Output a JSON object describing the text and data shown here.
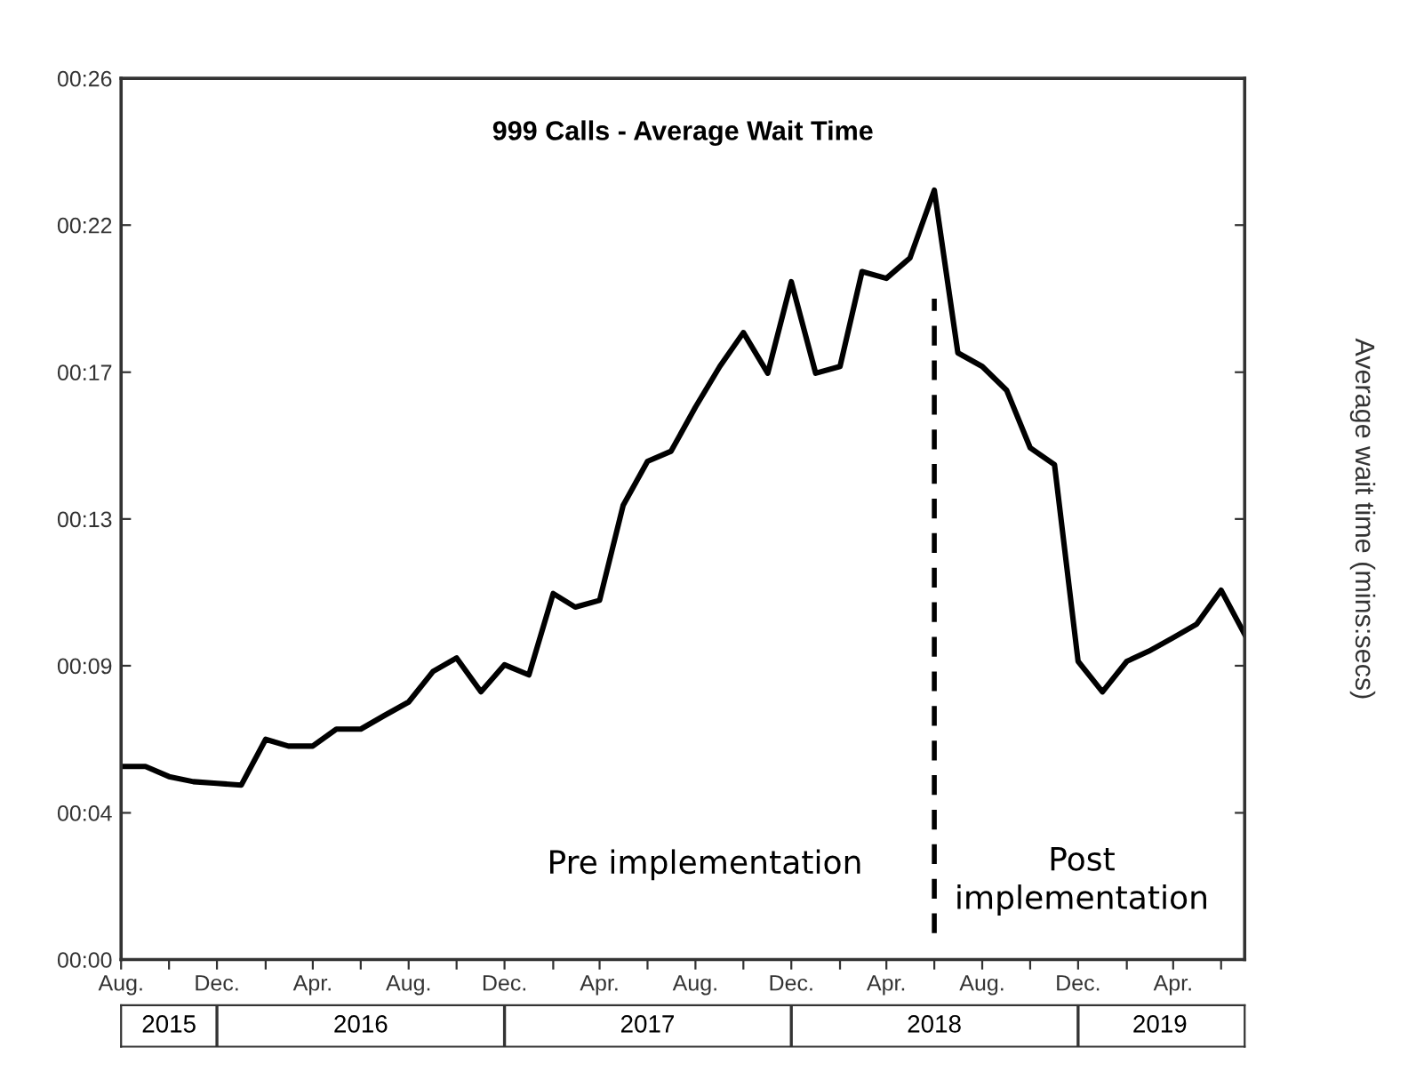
{
  "chart_data": {
    "type": "line",
    "title": "999 Calls - Average Wait Time",
    "y2label": "Average wait time (mins:secs)",
    "x": [
      "2015-08",
      "2015-09",
      "2015-10",
      "2015-11",
      "2015-12",
      "2016-01",
      "2016-02",
      "2016-03",
      "2016-04",
      "2016-05",
      "2016-06",
      "2016-07",
      "2016-08",
      "2016-09",
      "2016-10",
      "2016-11",
      "2016-12",
      "2017-01",
      "2017-02",
      "2017-03",
      "2017-04",
      "2017-05",
      "2017-06",
      "2017-07",
      "2017-08",
      "2017-09",
      "2017-10",
      "2017-11",
      "2017-12",
      "2018-01",
      "2018-02",
      "2018-03",
      "2018-04",
      "2018-05",
      "2018-06",
      "2018-07",
      "2018-08",
      "2018-09",
      "2018-10",
      "2018-11",
      "2018-12",
      "2019-01",
      "2019-02",
      "2019-03",
      "2019-04",
      "2019-05",
      "2019-06",
      "2019-07"
    ],
    "series": [
      {
        "color": "#000000",
        "values": [
          5.7,
          5.7,
          5.4,
          5.25,
          5.2,
          5.15,
          6.5,
          6.3,
          6.3,
          6.8,
          6.8,
          7.2,
          7.6,
          8.5,
          8.9,
          7.9,
          8.7,
          8.4,
          10.8,
          10.4,
          10.6,
          13.4,
          14.7,
          15.0,
          16.3,
          17.5,
          18.5,
          17.3,
          20.0,
          17.3,
          17.5,
          20.3,
          20.1,
          20.7,
          22.7,
          17.9,
          17.5,
          16.8,
          15.1,
          14.6,
          8.8,
          7.9,
          8.8,
          9.1,
          9.5,
          9.9,
          10.9,
          9.6
        ]
      }
    ],
    "xlim": [
      "2015-08",
      "2019-07"
    ],
    "xticks": [
      {
        "value": "2015-08",
        "label": "Aug."
      },
      {
        "value": "2015-10",
        "label": null
      },
      {
        "value": "2015-12",
        "label": "Dec."
      },
      {
        "value": "2016-02",
        "label": null
      },
      {
        "value": "2016-04",
        "label": "Apr."
      },
      {
        "value": "2016-06",
        "label": null
      },
      {
        "value": "2016-08",
        "label": "Aug."
      },
      {
        "value": "2016-10",
        "label": null
      },
      {
        "value": "2016-12",
        "label": "Dec."
      },
      {
        "value": "2017-02",
        "label": null
      },
      {
        "value": "2017-04",
        "label": "Apr."
      },
      {
        "value": "2017-06",
        "label": null
      },
      {
        "value": "2017-08",
        "label": "Aug."
      },
      {
        "value": "2017-10",
        "label": null
      },
      {
        "value": "2017-12",
        "label": "Dec."
      },
      {
        "value": "2018-02",
        "label": null
      },
      {
        "value": "2018-04",
        "label": "Apr."
      },
      {
        "value": "2018-06",
        "label": null
      },
      {
        "value": "2018-08",
        "label": "Aug."
      },
      {
        "value": "2018-10",
        "label": null
      },
      {
        "value": "2018-12",
        "label": "Dec."
      },
      {
        "value": "2019-02",
        "label": null
      },
      {
        "value": "2019-04",
        "label": "Apr."
      },
      {
        "value": "2019-06",
        "label": null
      }
    ],
    "x2lim": [
      "2015-08",
      "2019-07"
    ],
    "x2ticks": [
      {
        "value": "2015-12",
        "label": null
      },
      {
        "value": "2016-12",
        "label": null
      },
      {
        "value": "2017-12",
        "label": null
      },
      {
        "value": "2018-12",
        "label": null
      },
      {
        "value": "2015-10",
        "label": "2015"
      },
      {
        "value": "2016-06",
        "label": "2016"
      },
      {
        "value": "2017-06",
        "label": "2017"
      },
      {
        "value": "2018-06",
        "label": "2018"
      },
      {
        "value": "2019-03-15",
        "label": "2019"
      }
    ],
    "ylim": [
      0,
      26
    ],
    "yticks": [
      {
        "value": 0,
        "label": "00:00"
      },
      {
        "value": 4.33,
        "label": "00:04"
      },
      {
        "value": 8.67,
        "label": "00:09"
      },
      {
        "value": 13,
        "label": "00:13"
      },
      {
        "value": 17.33,
        "label": "00:17"
      },
      {
        "value": 21.67,
        "label": "00:22"
      },
      {
        "value": 26,
        "label": "00:26"
      }
    ],
    "ref_lines": [
      {
        "axis": "x",
        "value": "2018-06",
        "label": null,
        "color": "#000000",
        "line_style": "dashed"
      }
    ],
    "annotations": [
      "Pre implementation",
      "Post\nimplementation"
    ],
    "grid": false,
    "legend": false,
    "marker": "none",
    "line_style": "solid"
  }
}
